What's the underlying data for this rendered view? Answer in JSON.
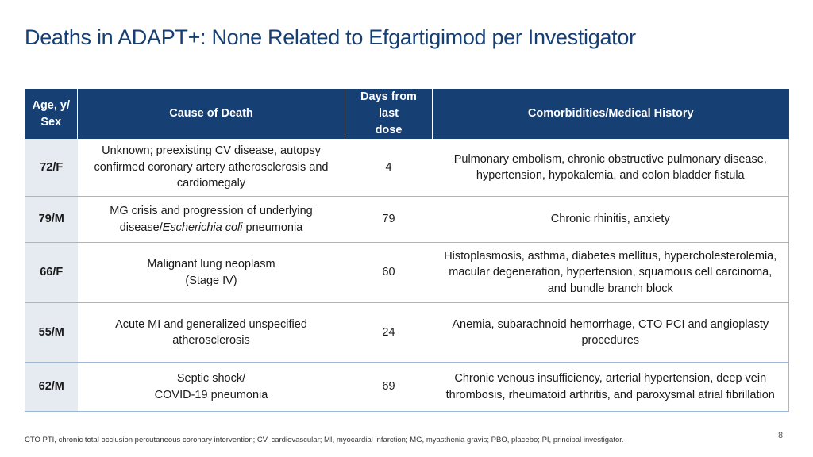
{
  "title": "Deaths in ADAPT+: None Related to Efgartigimod per Investigator",
  "table": {
    "headers": {
      "age_sex_line1": "Age, y/",
      "age_sex_line2": "Sex",
      "cause": "Cause of Death",
      "days_line1": "Days from last",
      "days_line2": "dose",
      "comorbidities": "Comorbidities/Medical History"
    },
    "rows": [
      {
        "age_sex": "72/F",
        "cause": "Unknown; preexisting CV disease, autopsy confirmed coronary artery atherosclerosis and cardiomegaly",
        "days": "4",
        "comorbidities": "Pulmonary embolism, chronic obstructive pulmonary disease, hypertension, hypokalemia, and colon bladder fistula"
      },
      {
        "age_sex": "79/M",
        "cause_part1": "MG crisis and progression of underlying disease/",
        "cause_italic": "Escherichia coli",
        "cause_part2": " pneumonia",
        "days": "79",
        "comorbidities": "Chronic rhinitis, anxiety"
      },
      {
        "age_sex": "66/F",
        "cause_line1": "Malignant lung neoplasm",
        "cause_line2": "(Stage IV)",
        "days": "60",
        "comorbidities": "Histoplasmosis, asthma, diabetes mellitus, hypercholesterolemia, macular degeneration, hypertension, squamous cell carcinoma, and bundle branch block"
      },
      {
        "age_sex": "55/M",
        "cause": "Acute MI and generalized unspecified atherosclerosis",
        "days": "24",
        "comorbidities": "Anemia, subarachnoid hemorrhage, CTO PCI and angioplasty procedures"
      },
      {
        "age_sex": "62/M",
        "cause_line1": "Septic shock/",
        "cause_line2": "COVID-19 pneumonia",
        "days": "69",
        "comorbidities": "Chronic venous insufficiency, arterial hypertension, deep vein thrombosis, rheumatoid arthritis, and paroxysmal atrial fibrillation"
      }
    ]
  },
  "footnote": "CTO PTI, chronic total occlusion percutaneous coronary intervention; CV, cardiovascular; MI, myocardial infarction; MG, myasthenia gravis; PBO, placebo; PI, principal investigator.",
  "page_number": "8",
  "colors": {
    "title": "#163f73",
    "header_bg": "#163f73",
    "age_col_bg": "#e6ebf2",
    "row_border": "#9db7d4"
  }
}
